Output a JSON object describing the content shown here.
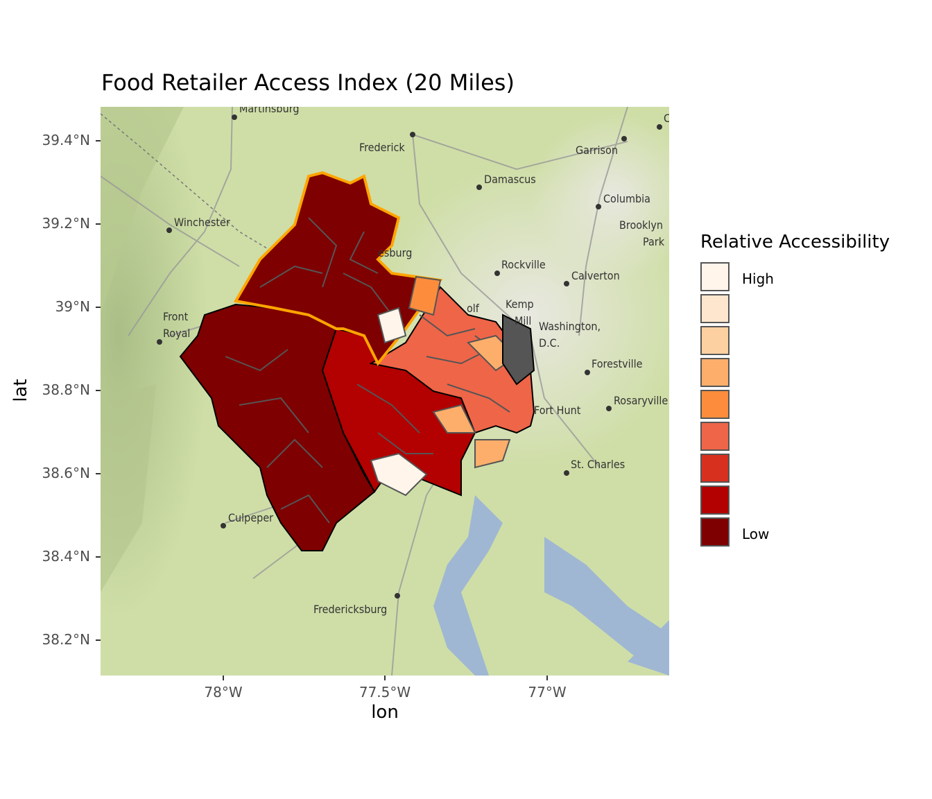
{
  "title": "Food Retailer Access Index (20 Miles)",
  "axes": {
    "xlabel": "lon",
    "ylabel": "lat",
    "xticks": [
      "78°W",
      "77.5°W",
      "77°W"
    ],
    "yticks": [
      "39.4°N",
      "39.2°N",
      "39°N",
      "38.8°N",
      "38.6°N",
      "38.4°N",
      "38.2°N"
    ]
  },
  "legend": {
    "title": "Relative Accessibility",
    "high_label": "High",
    "low_label": "Low",
    "colors": [
      "#fff5eb",
      "#fee6ce",
      "#fdd0a2",
      "#fdae6b",
      "#fd8d3c",
      "#ef6548",
      "#d7301f",
      "#b30000",
      "#7f0000"
    ]
  },
  "places": [
    {
      "name": "Martinsburg"
    },
    {
      "name": "Frederick"
    },
    {
      "name": "Garrison"
    },
    {
      "name": "Damascus"
    },
    {
      "name": "Columbia"
    },
    {
      "name": "Brooklyn"
    },
    {
      "name": "Park"
    },
    {
      "name": "Winchester"
    },
    {
      "name": "esburg"
    },
    {
      "name": "Rockville"
    },
    {
      "name": "Calverton"
    },
    {
      "name": "olf"
    },
    {
      "name": "Kemp"
    },
    {
      "name": "Mill"
    },
    {
      "name": "Washington,"
    },
    {
      "name": "D.C."
    },
    {
      "name": "Front"
    },
    {
      "name": "Royal"
    },
    {
      "name": "Forestville"
    },
    {
      "name": "Fort Hunt"
    },
    {
      "name": "Rosaryville"
    },
    {
      "name": "St. Charles"
    },
    {
      "name": "Culpeper"
    },
    {
      "name": "Fredericksburg"
    },
    {
      "name": "C"
    }
  ],
  "chart_data": {
    "type": "choropleth",
    "xlim": [
      -78.375,
      -76.625
    ],
    "ylim": [
      38.11,
      39.48
    ],
    "fill_scale": "Relative Accessibility",
    "colors": {
      "county_outline": "#000000",
      "highlight_outline": "#ffa500",
      "tract_border": "#555555",
      "water": "#9fb7d3",
      "terrain": "#cfe0a8"
    }
  }
}
